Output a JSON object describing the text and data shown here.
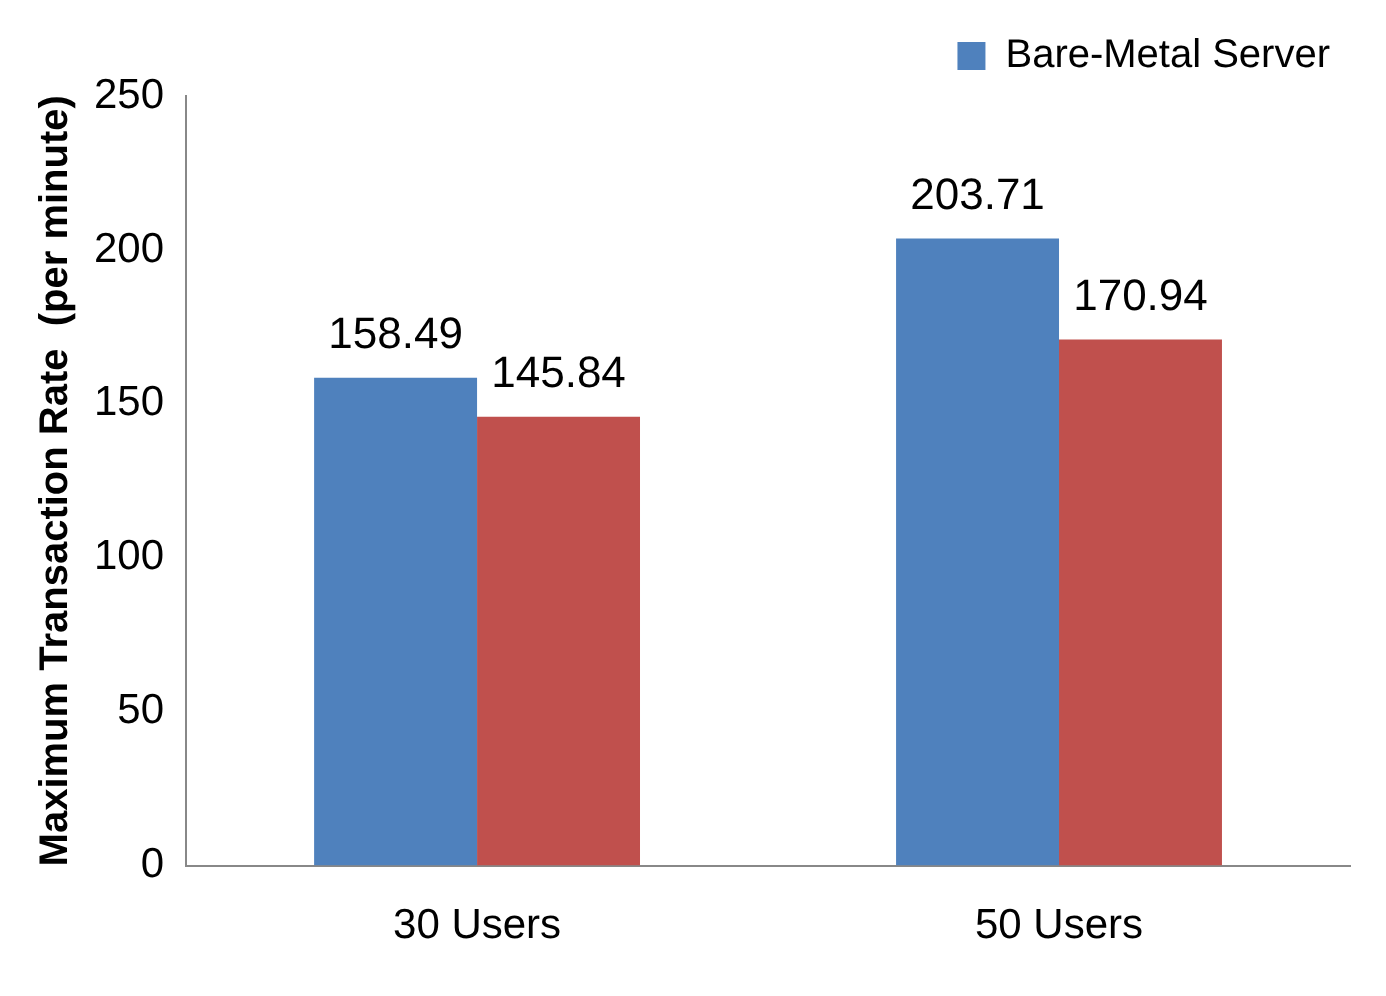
{
  "chart_data": {
    "type": "bar",
    "ylabel": "Maximum Transaction Rate  (per minute)",
    "categories": [
      "30 Users",
      "50 Users"
    ],
    "series": [
      {
        "name": "Bare-Metal Server",
        "color": "#4f81bd",
        "values": [
          158.49,
          203.71
        ]
      },
      {
        "color": "#c0504d",
        "values": [
          145.84,
          170.94
        ]
      }
    ],
    "ylim": [
      0,
      250
    ],
    "yticks": [
      0,
      50,
      100,
      150,
      200,
      250
    ],
    "grid": false,
    "legend": "top right",
    "data_labels": true
  }
}
